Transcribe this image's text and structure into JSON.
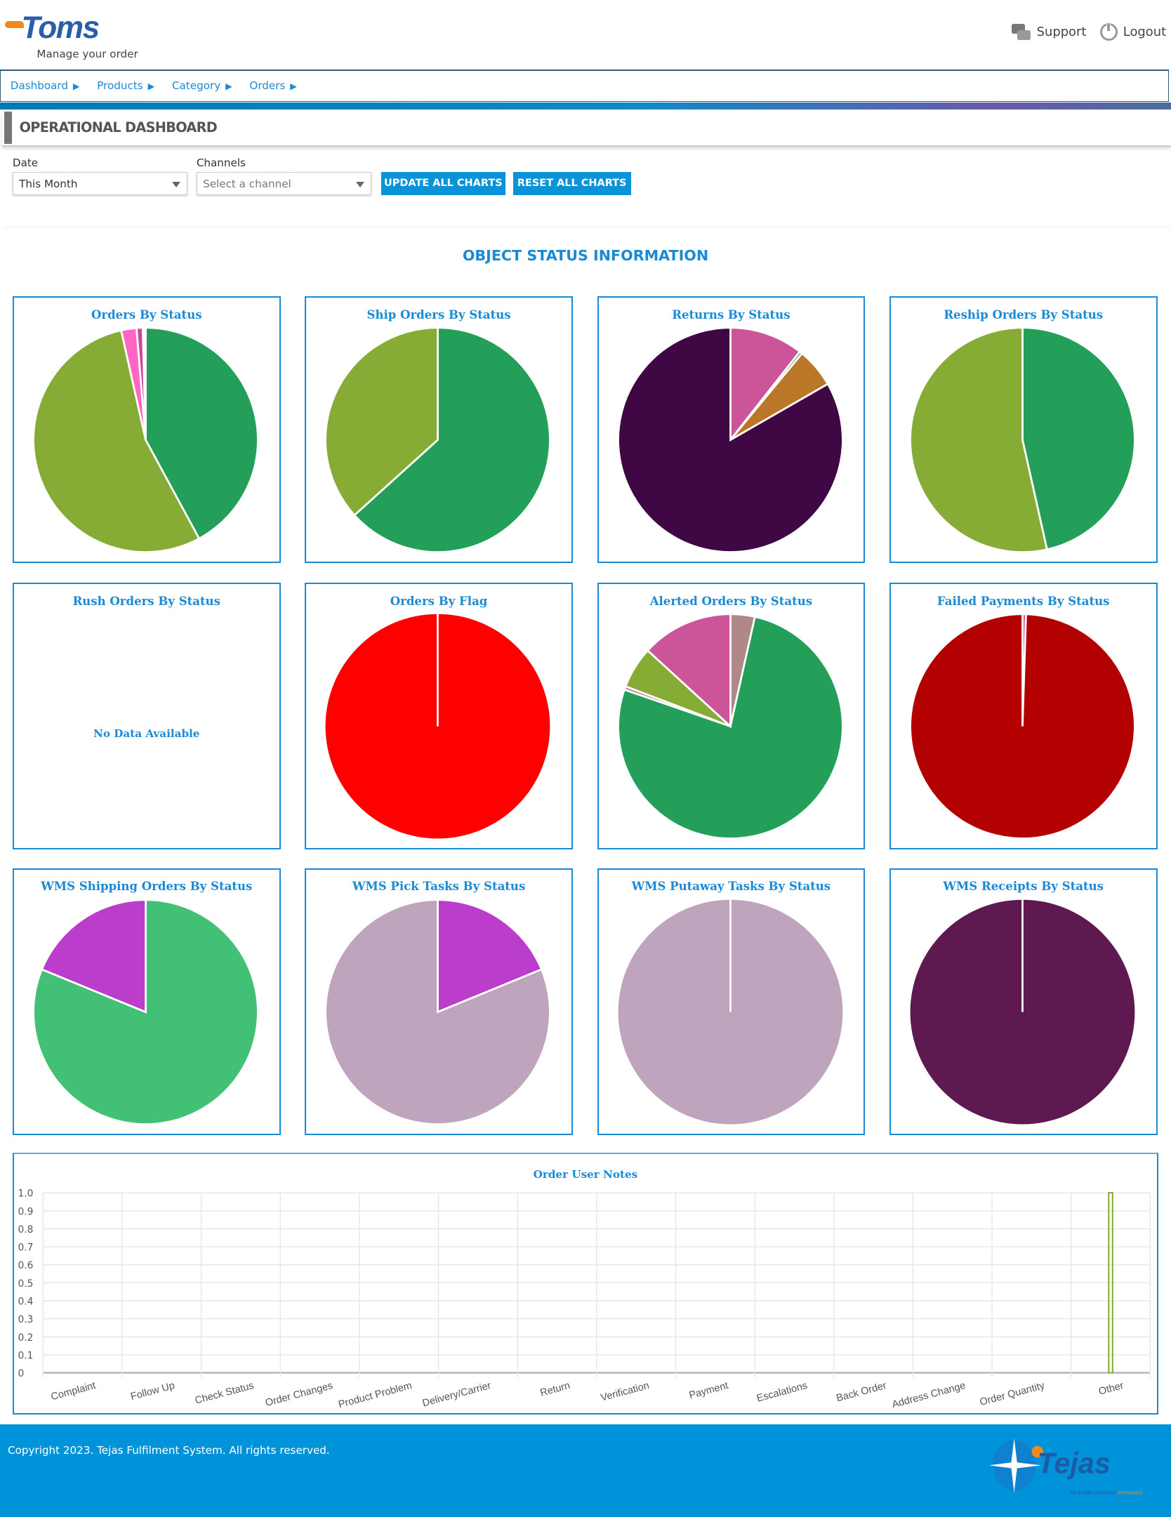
{
  "header": {
    "logo_text": "Toms",
    "logo_tagline": "Manage your order",
    "support_label": "Support",
    "logout_label": "Logout",
    "icons": {
      "support": "chat-bubbles-icon",
      "logout": "power-icon"
    }
  },
  "breadcrumb": [
    {
      "label": "Dashboard"
    },
    {
      "label": "Products"
    },
    {
      "label": "Category"
    },
    {
      "label": "Orders"
    }
  ],
  "page_title": "OPERATIONAL DASHBOARD",
  "filters": {
    "date_label": "Date",
    "date_value": "This Month",
    "channels_label": "Channels",
    "channels_placeholder": "Select a channel",
    "update_button": "UPDATE ALL CHARTS",
    "reset_button": "RESET ALL CHARTS"
  },
  "section_title": "OBJECT STATUS INFORMATION",
  "colors": {
    "accent": "#1a8ad4",
    "button": "#0a93d6",
    "footer": "#0093d9"
  },
  "chart_data": [
    {
      "type": "pie",
      "title": "Orders By Status",
      "values": [
        42.1,
        54.4,
        2.2,
        0.9,
        0.3,
        0.1
      ],
      "colors": [
        "#239f5a",
        "#86ac35",
        "#ff66c4",
        "#c94b97",
        "#a9c9e0",
        "#dde8f0"
      ]
    },
    {
      "type": "pie",
      "title": "Ship Orders By Status",
      "values": [
        63.3,
        36.7
      ],
      "colors": [
        "#239f5a",
        "#86ac35"
      ]
    },
    {
      "type": "pie",
      "title": "Returns By Status",
      "values": [
        10.6,
        0.4,
        5.7,
        83.3
      ],
      "colors": [
        "#cc5599",
        "#239f5a",
        "#bb7728",
        "#3f0844"
      ]
    },
    {
      "type": "pie",
      "title": "Reship Orders By Status",
      "values": [
        46.5,
        53.5
      ],
      "colors": [
        "#239f5a",
        "#86ac35"
      ]
    },
    {
      "type": "pie",
      "title": "Rush Orders By Status",
      "values": [],
      "colors": [],
      "empty_text": "No Data Available"
    },
    {
      "type": "pie",
      "title": "Orders By Flag",
      "values": [
        100
      ],
      "colors": [
        "#ff0000"
      ]
    },
    {
      "type": "pie",
      "title": "Alerted Orders By Status",
      "values": [
        3.5,
        76.8,
        0.5,
        6.0,
        13.2
      ],
      "colors": [
        "#b08888",
        "#239f5a",
        "#c08a8a",
        "#86ac35",
        "#cc5599"
      ]
    },
    {
      "type": "pie",
      "title": "Failed Payments By Status",
      "values": [
        0.5,
        99.5
      ],
      "colors": [
        "#cc5599",
        "#b30000"
      ]
    },
    {
      "type": "pie",
      "title": "WMS Shipping Orders By Status",
      "values": [
        81.2,
        18.8
      ],
      "colors": [
        "#42c176",
        "#bb3dcc"
      ]
    },
    {
      "type": "pie",
      "title": "WMS Pick Tasks By Status",
      "values": [
        18.8,
        81.2
      ],
      "colors": [
        "#bb3dcc",
        "#bea4bd"
      ]
    },
    {
      "type": "pie",
      "title": "WMS Putaway Tasks By Status",
      "values": [
        100
      ],
      "colors": [
        "#bea4bd"
      ]
    },
    {
      "type": "pie",
      "title": "WMS Receipts By Status",
      "values": [
        100
      ],
      "colors": [
        "#5e1a50"
      ]
    },
    {
      "type": "bar",
      "title": "Order User Notes",
      "categories": [
        "Complaint",
        "Follow Up",
        "Check Status",
        "Order Changes",
        "Product Problem",
        "Delivery/Carrier",
        "Return",
        "Verification",
        "Payment",
        "Escalations",
        "Back Order",
        "Address Change",
        "Order Quantity",
        "Other"
      ],
      "values": [
        0,
        0,
        0,
        0,
        0,
        0,
        0,
        0,
        0,
        0,
        0,
        0,
        0,
        1
      ],
      "ylim": [
        0,
        1.0
      ],
      "yticks": [
        "0",
        "0.1",
        "0.2",
        "0.3",
        "0.4",
        "0.5",
        "0.6",
        "0.7",
        "0.8",
        "0.9",
        "1.0"
      ],
      "grid": true,
      "bar_color": "#86ac35"
    }
  ],
  "footer": {
    "copyright": "Copyright 2023. Tejas Fulfilment System. All rights reserved.",
    "logo_text": "Tejas",
    "logo_tagline": "We enable commerce everywhere"
  }
}
